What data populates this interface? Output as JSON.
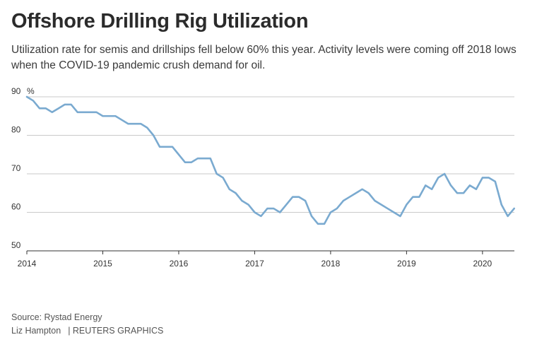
{
  "header": {
    "title": "Offshore Drilling Rig Utilization",
    "subtitle": "Utilization rate for semis and drillships fell below 60% this year. Activity levels were coming off 2018 lows when the COVID-19 pandemic crush demand for oil."
  },
  "footer": {
    "source": "Source: Rystad Energy",
    "author": "Liz Hampton",
    "credit": "| REUTERS GRAPHICS"
  },
  "chart_data": {
    "type": "line",
    "title": "Offshore Drilling Rig Utilization",
    "xlabel": "",
    "ylabel": "%",
    "ylim": [
      50,
      90
    ],
    "xlim": [
      2014,
      2020.42
    ],
    "grid": true,
    "line_color": "#7aaad0",
    "y_ticks": [
      90,
      80,
      70,
      60,
      50
    ],
    "y_unit": "%",
    "x_ticks": [
      2014,
      2015,
      2016,
      2017,
      2018,
      2019,
      2020
    ],
    "series": [
      {
        "name": "Utilization rate",
        "x": [
          2014.0,
          2014.083,
          2014.167,
          2014.25,
          2014.333,
          2014.417,
          2014.5,
          2014.583,
          2014.667,
          2014.75,
          2014.833,
          2014.917,
          2015.0,
          2015.083,
          2015.167,
          2015.25,
          2015.333,
          2015.417,
          2015.5,
          2015.583,
          2015.667,
          2015.75,
          2015.833,
          2015.917,
          2016.0,
          2016.083,
          2016.167,
          2016.25,
          2016.333,
          2016.417,
          2016.5,
          2016.583,
          2016.667,
          2016.75,
          2016.833,
          2016.917,
          2017.0,
          2017.083,
          2017.167,
          2017.25,
          2017.333,
          2017.417,
          2017.5,
          2017.583,
          2017.667,
          2017.75,
          2017.833,
          2017.917,
          2018.0,
          2018.083,
          2018.167,
          2018.25,
          2018.333,
          2018.417,
          2018.5,
          2018.583,
          2018.667,
          2018.75,
          2018.833,
          2018.917,
          2019.0,
          2019.083,
          2019.167,
          2019.25,
          2019.333,
          2019.417,
          2019.5,
          2019.583,
          2019.667,
          2019.75,
          2019.833,
          2019.917,
          2020.0,
          2020.083,
          2020.167,
          2020.25,
          2020.333,
          2020.417
        ],
        "values": [
          90,
          89,
          87,
          87,
          86,
          87,
          88,
          88,
          86,
          86,
          86,
          86,
          85,
          85,
          85,
          84,
          83,
          83,
          83,
          82,
          80,
          77,
          77,
          77,
          75,
          73,
          73,
          74,
          74,
          74,
          70,
          69,
          66,
          65,
          63,
          62,
          60,
          59,
          61,
          61,
          60,
          62,
          64,
          64,
          63,
          59,
          57,
          57,
          60,
          61,
          63,
          64,
          65,
          66,
          65,
          63,
          62,
          61,
          60,
          59,
          62,
          64,
          64,
          67,
          66,
          69,
          70,
          67,
          65,
          65,
          67,
          66,
          69,
          69,
          68,
          62,
          59,
          61
        ]
      }
    ]
  }
}
